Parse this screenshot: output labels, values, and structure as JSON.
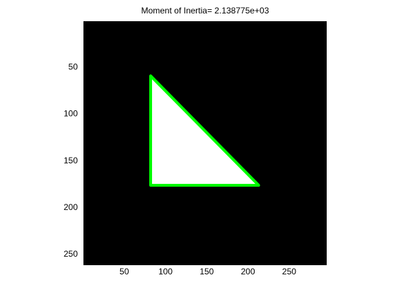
{
  "chart_data": {
    "type": "image",
    "title": "Moment of Inertia= 2.138775e+03",
    "x": [
      82,
      82,
      213
    ],
    "y": [
      59,
      176,
      176
    ],
    "color": "#00ff00",
    "fill": "#ffffff",
    "background": "#000000",
    "xlim": [
      0.5,
      295.5
    ],
    "ylim": [
      0.5,
      261.5
    ],
    "y_reversed": true,
    "xticks": [
      50,
      100,
      150,
      200,
      250
    ],
    "yticks": [
      50,
      100,
      150,
      200,
      250
    ]
  }
}
